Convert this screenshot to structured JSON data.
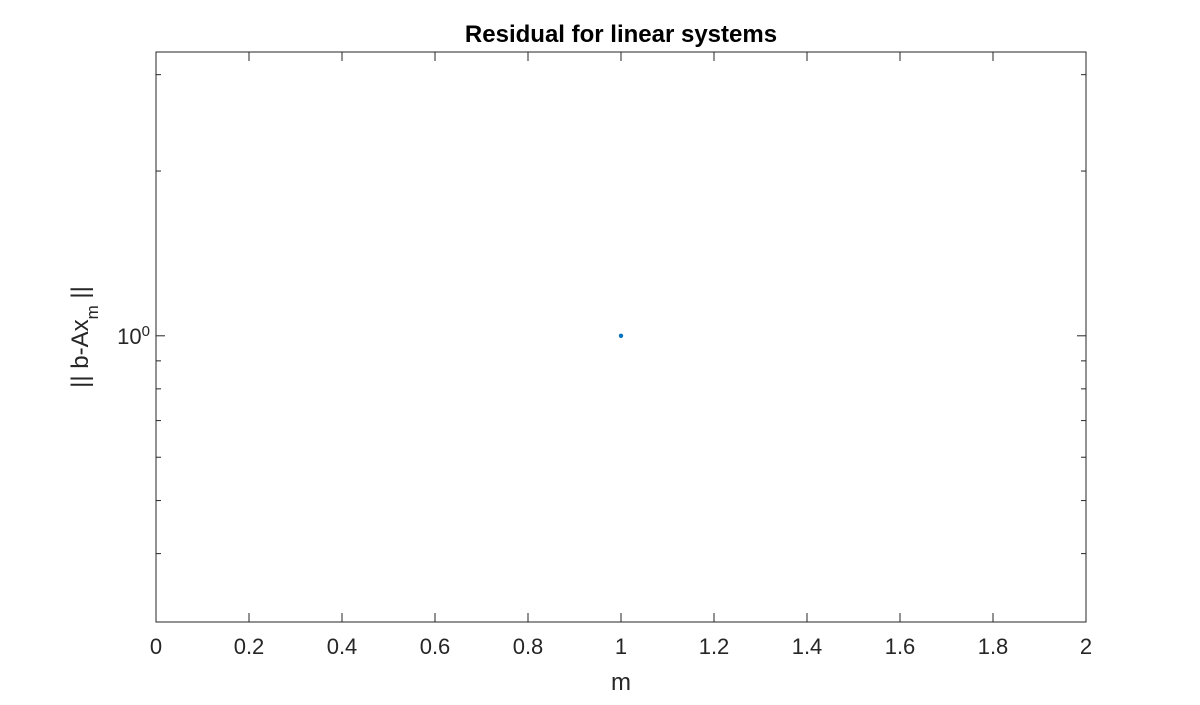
{
  "chart_data": {
    "type": "scatter",
    "title": "Residual for linear systems",
    "xlabel": "m",
    "ylabel": {
      "prefix": "|| b-Ax",
      "subscript": "m",
      "suffix": " ||"
    },
    "xlim": [
      0,
      2
    ],
    "yscale": "log",
    "ylim": [
      0.3,
      3.3
    ],
    "xticks": [
      0,
      0.2,
      0.4,
      0.6,
      0.8,
      1,
      1.2,
      1.4,
      1.6,
      1.8,
      2
    ],
    "xtick_labels": [
      "0",
      "0.2",
      "0.4",
      "0.6",
      "0.8",
      "1",
      "1.2",
      "1.4",
      "1.6",
      "1.8",
      "2"
    ],
    "yticks_major": [
      {
        "value": 1,
        "base": "10",
        "exponent": "0"
      }
    ],
    "yticks_minor": [
      0.3,
      0.4,
      0.5,
      0.6,
      0.7,
      0.8,
      0.9,
      2,
      3
    ],
    "grid": false,
    "box": true,
    "series": [
      {
        "x": [
          1
        ],
        "y": [
          1
        ],
        "color": "#0072BD",
        "marker": "dot"
      }
    ]
  }
}
